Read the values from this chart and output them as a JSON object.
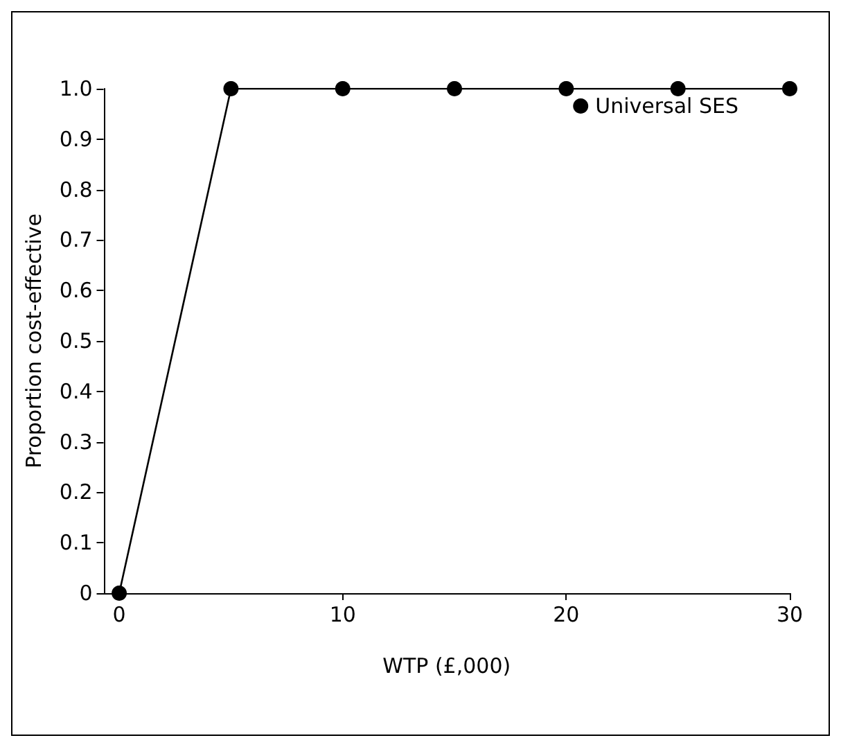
{
  "chart_data": {
    "type": "line",
    "xlabel": "WTP (£,000)",
    "ylabel": "Proportion cost-effective",
    "x": [
      0,
      5,
      10,
      15,
      20,
      25,
      30
    ],
    "series": [
      {
        "name": "Universal SES",
        "color": "#000000",
        "values": [
          0,
          1,
          1,
          1,
          1,
          1,
          1
        ]
      }
    ],
    "xlim": [
      -0.7,
      30
    ],
    "xticks": [
      0,
      10,
      20,
      30
    ],
    "ylim": [
      0,
      1
    ],
    "yticks": [
      0,
      0.1,
      0.2,
      0.3,
      0.4,
      0.5,
      0.6,
      0.7,
      0.8,
      0.9,
      {
        "value": 1,
        "label": "1.0"
      }
    ],
    "grid": false,
    "legend": "top right",
    "marker": "circle",
    "line_style": "solid"
  }
}
